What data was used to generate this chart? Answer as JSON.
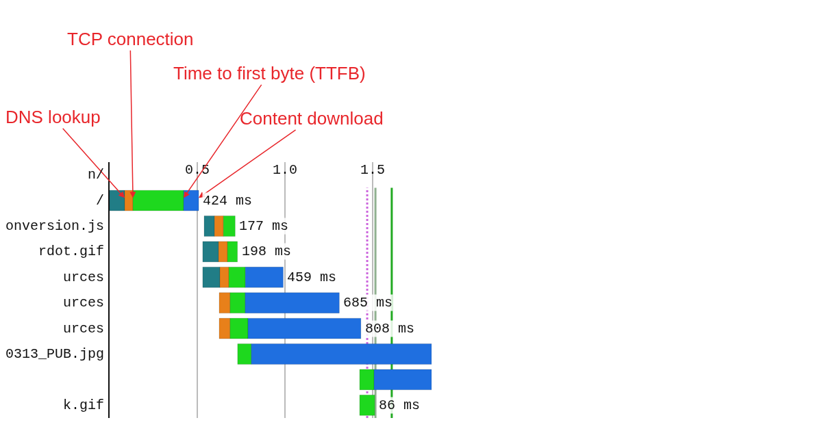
{
  "chart_data": {
    "type": "bar",
    "orientation": "horizontal",
    "categories": [
      "n/",
      "/",
      "onversion.js",
      "rdot.gif",
      "urces",
      "urces",
      "urces",
      "0313_PUB.jpg",
      null,
      "k.gif"
    ],
    "series": [
      {
        "color": "#217d86",
        "base": [
          null,
          0,
          0.539,
          0.531,
          0.531,
          null,
          null,
          null,
          null,
          null
        ],
        "values": [
          null,
          0.086,
          0.059,
          0.09,
          0.098,
          null,
          null,
          null,
          null,
          null
        ]
      },
      {
        "color": "#e8801a",
        "base": [
          null,
          0.086,
          0.598,
          0.621,
          0.629,
          0.625,
          0.625,
          null,
          null,
          null
        ],
        "values": [
          null,
          0.047,
          0.051,
          0.051,
          0.051,
          0.062,
          0.062,
          null,
          null,
          null
        ]
      },
      {
        "color": "#1ed81e",
        "base": [
          null,
          0.133,
          0.649,
          0.672,
          0.68,
          0.687,
          0.687,
          0.73,
          1.426,
          1.426
        ],
        "values": [
          null,
          0.289,
          0.067,
          0.057,
          0.094,
          0.086,
          0.102,
          0.078,
          0.082,
          0.086
        ]
      },
      {
        "color": "#1f6fe0",
        "base": [
          null,
          0.422,
          null,
          null,
          0.774,
          0.773,
          0.789,
          0.808,
          1.508,
          null
        ],
        "values": [
          null,
          0.086,
          null,
          null,
          0.216,
          0.537,
          0.644,
          1.028,
          0.328,
          null
        ]
      }
    ],
    "xlim": [
      0,
      1.836
    ],
    "xticks": [
      0.5,
      {
        "value": 1.0,
        "label": "1.0"
      },
      1.5
    ],
    "grid": "x",
    "ref_lines": [
      {
        "axis": "x",
        "value": 1.469,
        "color": "#cc66dd",
        "line_style": "dotted"
      },
      {
        "axis": "x",
        "value": 1.516,
        "color": "#8fb08f"
      },
      {
        "axis": "x",
        "value": 1.609,
        "color": "#22aa22"
      }
    ],
    "annotations": [
      {
        "text": "DNS lookup",
        "x": 0.086,
        "y": "/"
      },
      {
        "text": "TCP connection",
        "x": 0.133,
        "y": "/"
      },
      {
        "text": "Time to first byte (TTFB)",
        "x": 0.422,
        "y": "/"
      },
      {
        "text": "Content download",
        "x": 0.508,
        "y": "/"
      },
      "424 ms",
      "177 ms",
      "198 ms",
      "459 ms",
      "685 ms",
      "808 ms",
      "86 ms"
    ]
  }
}
